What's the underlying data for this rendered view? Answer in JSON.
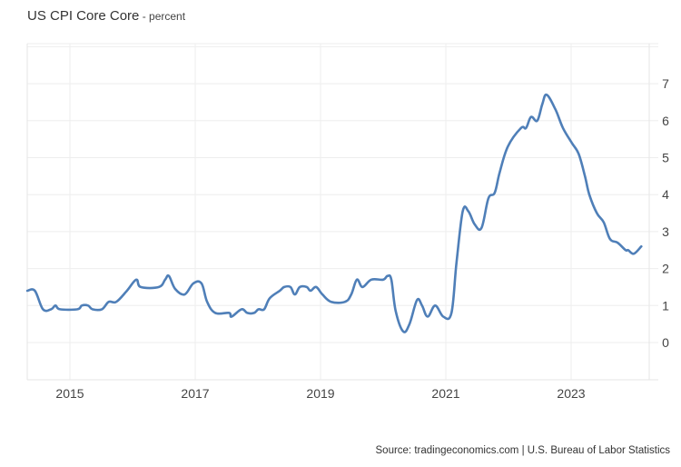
{
  "header": {
    "title": "US CPI Core Core",
    "unit_suffix": " - percent"
  },
  "footer": {
    "source": "Source: tradingeconomics.com | U.S. Bureau of Labor Statistics"
  },
  "colors": {
    "line": "#4f7fb8",
    "grid": "#eeeeee",
    "axis_text": "#444444",
    "background": "#ffffff"
  },
  "chart_data": {
    "type": "line",
    "title": "US CPI Core Core - percent",
    "xlabel": "",
    "ylabel": "percent",
    "xlim": [
      2014.32,
      2024.33
    ],
    "ylim": [
      -1,
      8
    ],
    "grid": true,
    "legend": "none",
    "y_axis_position": "right",
    "x_ticks": [
      "2015",
      "2017",
      "2019",
      "2021",
      "2023"
    ],
    "y_ticks": [
      0,
      1,
      2,
      3,
      4,
      5,
      6,
      7
    ],
    "series": [
      {
        "name": "US CPI Core Core",
        "x": [
          2014.32,
          2014.44,
          2014.57,
          2014.7,
          2014.77,
          2014.84,
          2015.12,
          2015.19,
          2015.29,
          2015.36,
          2015.51,
          2015.62,
          2015.74,
          2015.91,
          2016.06,
          2016.13,
          2016.42,
          2016.52,
          2016.58,
          2016.68,
          2016.83,
          2016.97,
          2017.1,
          2017.19,
          2017.32,
          2017.54,
          2017.58,
          2017.74,
          2017.83,
          2017.94,
          2018.01,
          2018.1,
          2018.19,
          2018.35,
          2018.42,
          2018.52,
          2018.59,
          2018.67,
          2018.78,
          2018.84,
          2018.93,
          2019.03,
          2019.17,
          2019.39,
          2019.49,
          2019.58,
          2019.67,
          2019.81,
          2020.0,
          2020.07,
          2020.13,
          2020.2,
          2020.32,
          2020.42,
          2020.54,
          2020.62,
          2020.71,
          2020.83,
          2020.96,
          2021.09,
          2021.17,
          2021.27,
          2021.36,
          2021.46,
          2021.57,
          2021.68,
          2021.78,
          2021.86,
          2021.99,
          2022.2,
          2022.28,
          2022.36,
          2022.46,
          2022.54,
          2022.61,
          2022.75,
          2022.87,
          2023.01,
          2023.12,
          2023.22,
          2023.29,
          2023.41,
          2023.52,
          2023.62,
          2023.74,
          2023.87,
          2023.91,
          2024.0,
          2024.12
        ],
        "values": [
          1.4,
          1.4,
          0.9,
          0.9,
          1.0,
          0.9,
          0.9,
          1.0,
          1.0,
          0.9,
          0.9,
          1.1,
          1.1,
          1.4,
          1.7,
          1.5,
          1.5,
          1.7,
          1.8,
          1.45,
          1.3,
          1.6,
          1.6,
          1.1,
          0.8,
          0.8,
          0.7,
          0.9,
          0.8,
          0.8,
          0.9,
          0.9,
          1.2,
          1.4,
          1.5,
          1.5,
          1.3,
          1.5,
          1.5,
          1.4,
          1.5,
          1.3,
          1.1,
          1.1,
          1.3,
          1.7,
          1.5,
          1.7,
          1.7,
          1.8,
          1.7,
          0.85,
          0.3,
          0.5,
          1.15,
          1.0,
          0.7,
          1.0,
          0.7,
          0.8,
          2.15,
          3.55,
          3.55,
          3.2,
          3.1,
          3.9,
          4.05,
          4.6,
          5.3,
          5.8,
          5.8,
          6.1,
          6.0,
          6.45,
          6.7,
          6.3,
          5.8,
          5.4,
          5.1,
          4.5,
          4.0,
          3.5,
          3.25,
          2.8,
          2.7,
          2.5,
          2.5,
          2.4,
          2.6
        ]
      }
    ],
    "last_value": 2.6,
    "peak": {
      "x": 2022.61,
      "value": 6.7
    },
    "trough": {
      "x": 2020.32,
      "value": 0.3
    }
  }
}
